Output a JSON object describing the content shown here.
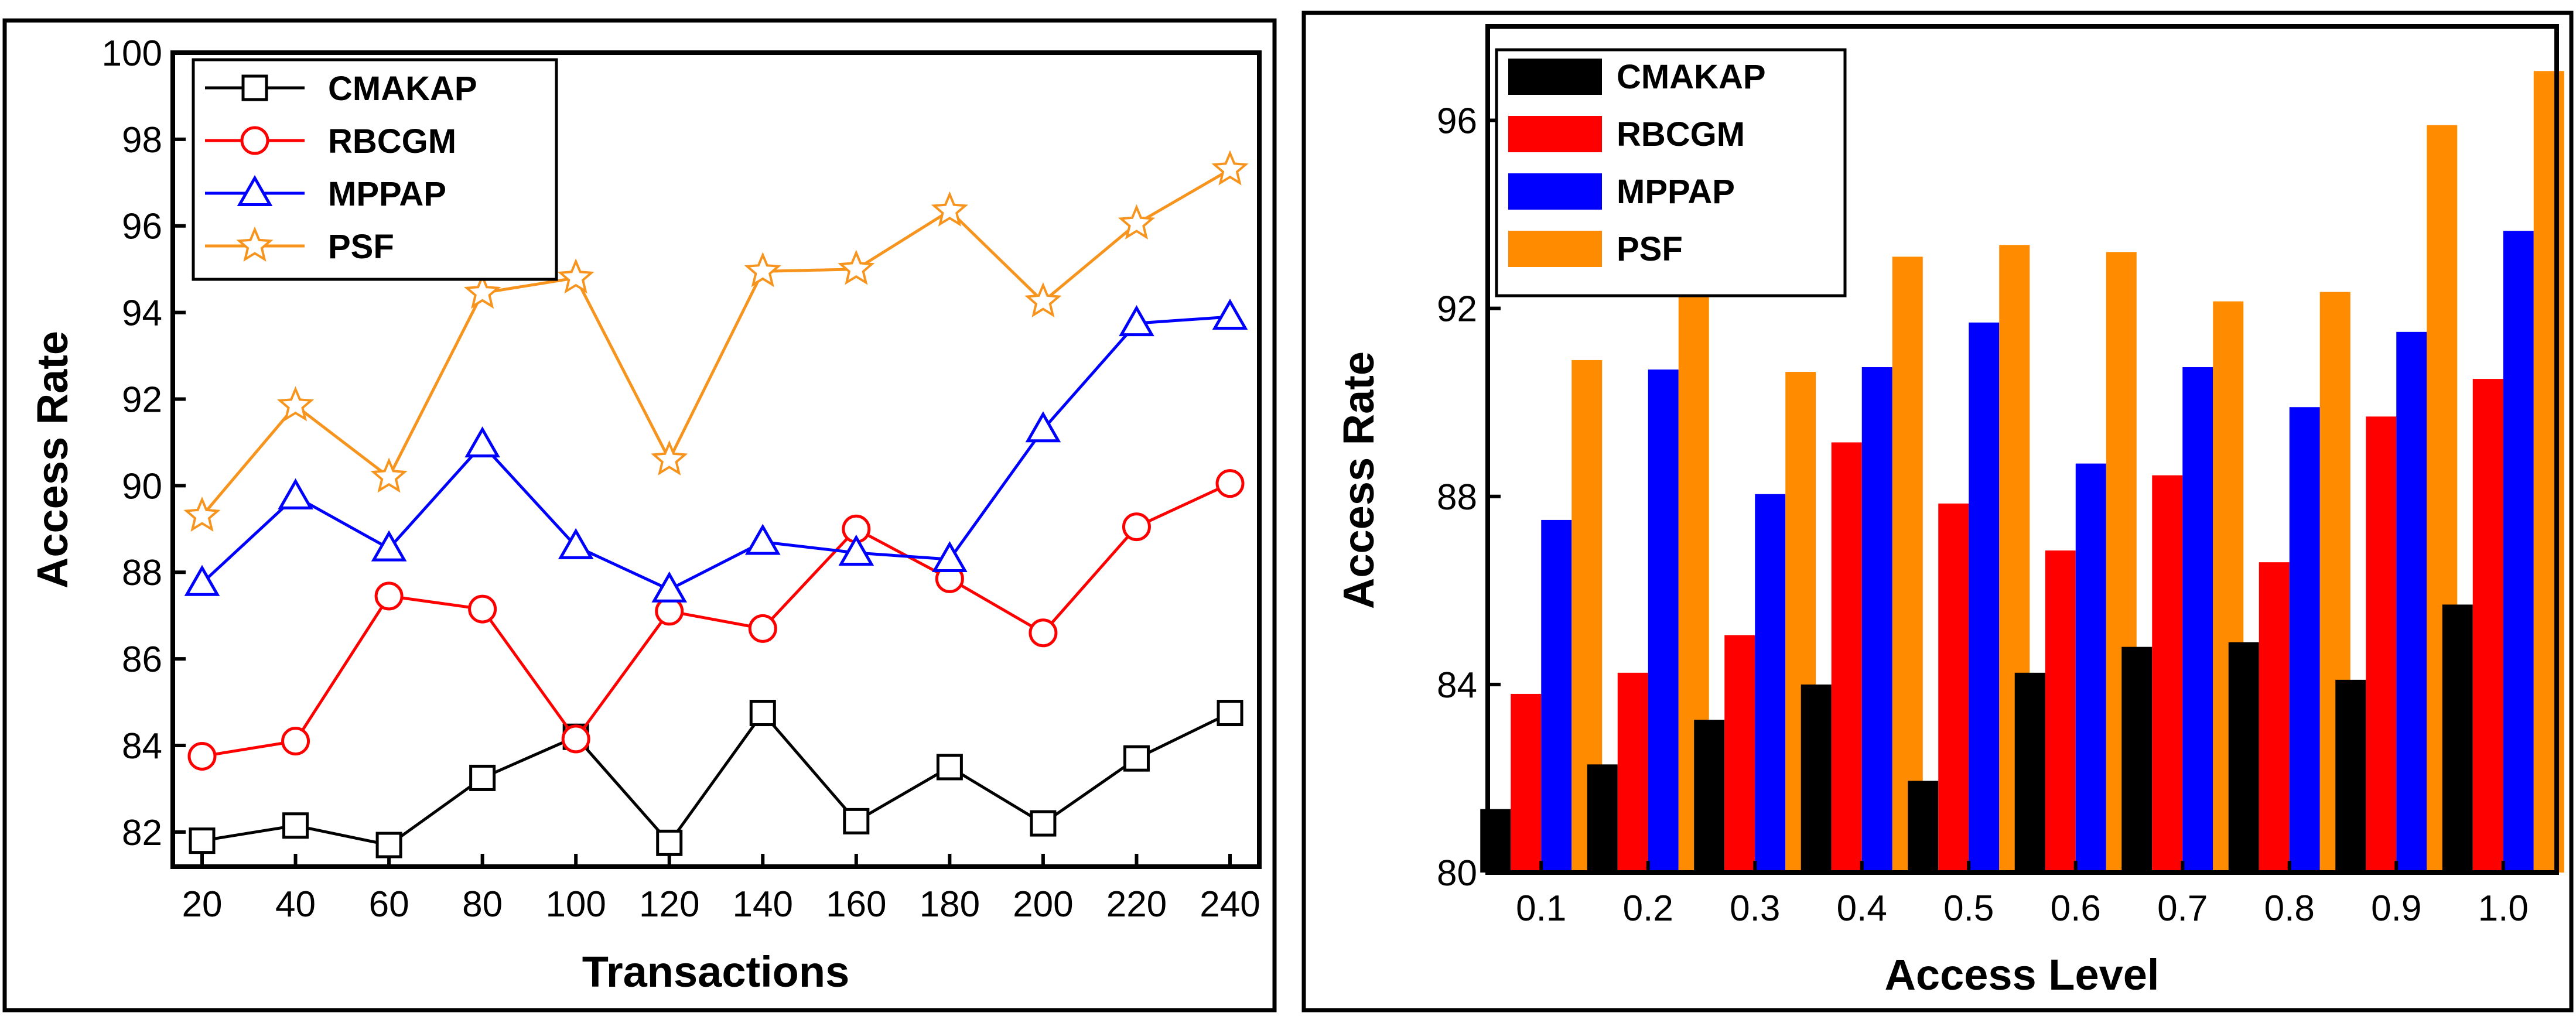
{
  "chart_data": [
    {
      "type": "line",
      "xlabel": "Transactions",
      "ylabel": "Access Rate",
      "x": [
        20,
        40,
        60,
        80,
        100,
        120,
        140,
        160,
        180,
        200,
        220,
        240
      ],
      "xlim": [
        20,
        240
      ],
      "ylim": [
        81.2,
        100
      ],
      "yticks": [
        82,
        84,
        86,
        88,
        90,
        92,
        94,
        96,
        98,
        100
      ],
      "legend_position": "top-left",
      "series": [
        {
          "name": "CMAKAP",
          "color": "#000000",
          "marker": "square",
          "values": [
            81.8,
            82.15,
            81.7,
            83.25,
            84.2,
            81.75,
            84.75,
            82.25,
            83.5,
            82.2,
            83.7,
            84.75
          ]
        },
        {
          "name": "RBCGM",
          "color": "#ff0000",
          "marker": "circle",
          "values": [
            83.75,
            84.1,
            87.45,
            87.15,
            84.15,
            87.1,
            86.7,
            89.0,
            87.85,
            86.6,
            89.05,
            90.05
          ]
        },
        {
          "name": "MPPAP",
          "color": "#0000ff",
          "marker": "triangle",
          "values": [
            87.75,
            89.75,
            88.55,
            90.95,
            88.6,
            87.6,
            88.7,
            88.45,
            88.3,
            91.3,
            93.75,
            93.9
          ]
        },
        {
          "name": "PSF",
          "color": "#f7941d",
          "marker": "star",
          "values": [
            89.3,
            91.85,
            90.2,
            94.45,
            94.8,
            90.6,
            94.95,
            95.0,
            96.35,
            94.25,
            96.05,
            97.3
          ]
        }
      ]
    },
    {
      "type": "bar",
      "xlabel": "Access Level",
      "ylabel": "Access Rate",
      "categories": [
        "0.1",
        "0.2",
        "0.3",
        "0.4",
        "0.5",
        "0.6",
        "0.7",
        "0.8",
        "0.9",
        "1.0"
      ],
      "ylim": [
        80,
        98
      ],
      "yticks": [
        80,
        84,
        88,
        92,
        96
      ],
      "legend_position": "top-left",
      "series": [
        {
          "name": "CMAKAP",
          "color": "#000000",
          "values": [
            81.35,
            82.3,
            83.25,
            84.0,
            81.95,
            84.25,
            84.8,
            84.9,
            84.1,
            85.7
          ]
        },
        {
          "name": "RBCGM",
          "color": "#ff0000",
          "values": [
            83.8,
            84.25,
            85.05,
            89.15,
            87.85,
            86.85,
            88.45,
            86.6,
            89.7,
            90.5
          ]
        },
        {
          "name": "MPPAP",
          "color": "#0000ff",
          "values": [
            87.5,
            90.7,
            88.05,
            90.75,
            91.7,
            88.7,
            90.75,
            89.9,
            91.5,
            93.65
          ]
        },
        {
          "name": "PSF",
          "color": "#ff8c00",
          "values": [
            90.9,
            92.3,
            90.65,
            93.1,
            93.35,
            93.2,
            92.15,
            92.35,
            95.9,
            97.05
          ]
        }
      ]
    }
  ]
}
